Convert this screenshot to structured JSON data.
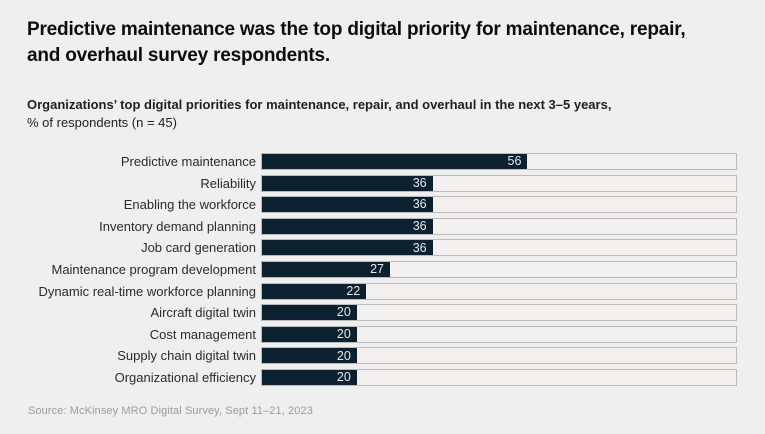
{
  "page": {
    "title_lines": [
      "Predictive maintenance was the top digital priority for maintenance, repair,",
      "and overhaul survey respondents."
    ],
    "subtitle_bold": "Organizations’ top digital priorities for maintenance, repair, and overhaul in the next 3–5 years,",
    "subtitle_regular": "% of respondents (n = 45)",
    "source": "Source: McKinsey MRO Digital Survey, Sept 11–21, 2023"
  },
  "colors": {
    "page_bg": "#efefef",
    "bar_fill": "#0c2130",
    "bar_track": "#f2f1ef",
    "track_border": "#bbbbbb",
    "value_label": "#e6e9eb"
  },
  "chart_data": {
    "type": "bar",
    "orientation": "horizontal",
    "title": "Organizations’ top digital priorities for maintenance, repair, and overhaul in the next 3–5 years, % of respondents (n = 45)",
    "categories": [
      "Predictive maintenance",
      "Reliability",
      "Enabling the workforce",
      "Inventory demand planning",
      "Job card generation",
      "Maintenance program development",
      "Dynamic real-time workforce planning",
      "Aircraft digital twin",
      "Cost management",
      "Supply chain digital twin",
      "Organizational efficiency"
    ],
    "values": [
      56,
      36,
      36,
      36,
      36,
      27,
      22,
      20,
      20,
      20,
      20
    ],
    "xlim": [
      0,
      100
    ],
    "unit": "% of respondents",
    "n": 45,
    "value_labels_shown": true,
    "grid": false,
    "legend": false
  }
}
